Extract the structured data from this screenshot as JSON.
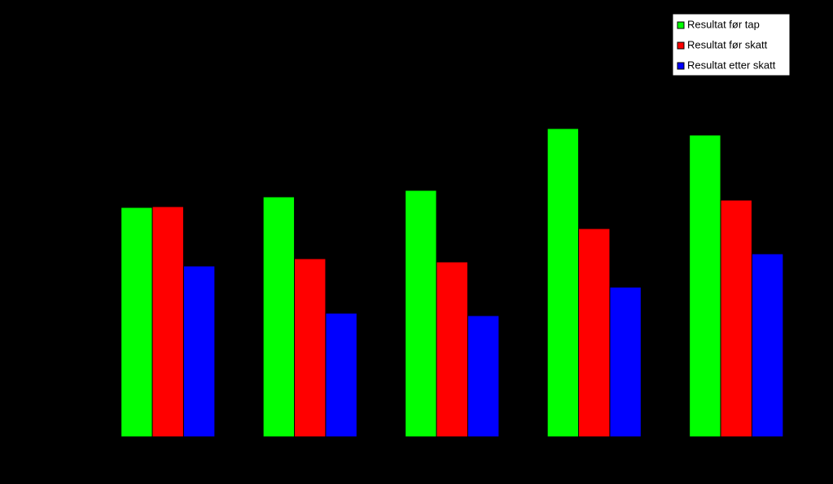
{
  "chart_data": {
    "type": "bar",
    "categories": [
      null,
      null,
      null,
      null,
      null
    ],
    "series": [
      {
        "name": "Resultat før tap",
        "color": "#00ff00",
        "values": [
          282,
          295,
          303,
          379,
          371
        ]
      },
      {
        "name": "Resultat før skatt",
        "color": "#ff0000",
        "values": [
          283,
          219,
          215,
          256,
          291
        ]
      },
      {
        "name": "Resultat etter skatt",
        "color": "#0000ff",
        "values": [
          210,
          152,
          149,
          184,
          225
        ]
      }
    ],
    "ylim": [
      0,
      500
    ],
    "legend": "top-right"
  }
}
